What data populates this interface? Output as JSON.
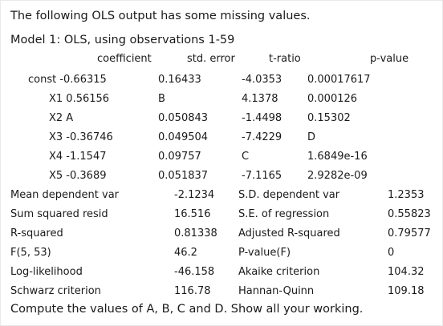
{
  "intro": "The following OLS output has some missing values.",
  "model_line": "Model 1: OLS, using observations 1-59",
  "coef_headers": {
    "coefficient": "coefficient",
    "std_error": "std. error",
    "t_ratio": "t-ratio",
    "p_value": "p-value"
  },
  "coef_rows": [
    {
      "label": "const -0.66315",
      "std_error": "0.16433",
      "t_ratio": "-4.0353",
      "p_value": "0.00017617"
    },
    {
      "label": "X1 0.56156",
      "std_error": "B",
      "t_ratio": "4.1378",
      "p_value": "0.000126"
    },
    {
      "label": "X2 A",
      "std_error": "0.050843",
      "t_ratio": "-1.4498",
      "p_value": "0.15302"
    },
    {
      "label": "X3 -0.36746",
      "std_error": "0.049504",
      "t_ratio": "-7.4229",
      "p_value": "D"
    },
    {
      "label": "X4 -1.1547",
      "std_error": "0.09757",
      "t_ratio": "C",
      "p_value": "1.6849e-16"
    },
    {
      "label": "X5 -0.3689",
      "std_error": "0.051837",
      "t_ratio": "-7.1165",
      "p_value": "2.9282e-09"
    }
  ],
  "stats_rows": [
    {
      "label1": "Mean dependent var",
      "value1": "-2.1234",
      "label2": "S.D. dependent var",
      "value2": "1.2353"
    },
    {
      "label1": "Sum squared resid",
      "value1": "16.516",
      "label2": "S.E. of regression",
      "value2": "0.55823"
    },
    {
      "label1": "R-squared",
      "value1": "0.81338",
      "label2": "Adjusted R-squared",
      "value2": "0.79577"
    },
    {
      "label1": "F(5, 53)",
      "value1": "46.2",
      "label2": "P-value(F)",
      "value2": "0"
    },
    {
      "label1": "Log-likelihood",
      "value1": "-46.158",
      "label2": "Akaike criterion",
      "value2": "104.32"
    },
    {
      "label1": "Schwarz criterion",
      "value1": "116.78",
      "label2": "Hannan-Quinn",
      "value2": "109.18"
    }
  ],
  "question": "Compute the values of A, B, C and D. Show all your working."
}
